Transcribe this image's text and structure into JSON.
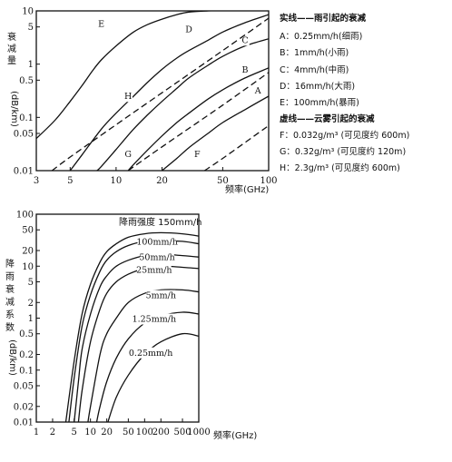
{
  "chart_data": [
    {
      "type": "line",
      "xscale": "log",
      "yscale": "log",
      "xlim": [
        3,
        100
      ],
      "ylim": [
        0.01,
        10
      ],
      "xlabel": "频率(GHz)",
      "ylabel": "衰减量(dB/km)",
      "xticks": [
        "3",
        "5",
        "10",
        "20",
        "50",
        "100"
      ],
      "xtick_values": [
        3,
        5,
        10,
        20,
        50,
        100
      ],
      "yticks": [
        "0.01",
        "0.05",
        "0.1",
        "0.5",
        "1",
        "5",
        "10"
      ],
      "ytick_values": [
        0.01,
        0.05,
        0.1,
        0.5,
        1,
        5,
        10
      ],
      "legend": {
        "solid_title": "实线——雨引起的衰减",
        "dashed_title": "虚线——云雾引起的衰减",
        "entries": [
          {
            "key": "A",
            "text": "A：0.25mm/h(细雨)"
          },
          {
            "key": "B",
            "text": "B：1mm/h(小雨)"
          },
          {
            "key": "C",
            "text": "C：4mm/h(中雨)"
          },
          {
            "key": "D",
            "text": "D：16mm/h(大雨)"
          },
          {
            "key": "E",
            "text": "E：100mm/h(暴雨)"
          },
          {
            "key": "F",
            "text": "F：0.032g/m³ (可见度约 600m)"
          },
          {
            "key": "G",
            "text": "G：0.32g/m³ (可见度约 120m)"
          },
          {
            "key": "H",
            "text": "H：2.3g/m³ (可见度约 600m)"
          }
        ]
      },
      "series": [
        {
          "name": "E",
          "style": "solid",
          "label_at": [
            8,
            5
          ],
          "x": [
            3,
            4,
            5,
            6,
            7,
            8,
            10,
            13,
            16,
            20,
            25,
            30,
            40,
            50,
            70,
            100
          ],
          "y": [
            0.04,
            0.09,
            0.2,
            0.4,
            0.75,
            1.2,
            2.2,
            4,
            5.5,
            7,
            8.5,
            9.5,
            10,
            10.5,
            11,
            12
          ]
        },
        {
          "name": "D",
          "style": "solid",
          "label_at": [
            30,
            4
          ],
          "x": [
            5,
            6,
            8,
            10,
            13,
            16,
            20,
            25,
            30,
            40,
            50,
            70,
            100
          ],
          "y": [
            0.01,
            0.02,
            0.06,
            0.12,
            0.25,
            0.45,
            0.8,
            1.3,
            1.8,
            2.8,
            4,
            6,
            8.5
          ]
        },
        {
          "name": "C",
          "style": "solid",
          "label_at": [
            70,
            2.5
          ],
          "x": [
            7.5,
            8,
            10,
            13,
            16,
            20,
            25,
            30,
            40,
            50,
            70,
            100
          ],
          "y": [
            0.01,
            0.012,
            0.025,
            0.06,
            0.11,
            0.2,
            0.35,
            0.55,
            0.95,
            1.4,
            2.2,
            3
          ]
        },
        {
          "name": "B",
          "style": "solid",
          "label_at": [
            70,
            0.7
          ],
          "x": [
            12,
            13,
            16,
            20,
            25,
            30,
            40,
            50,
            70,
            100
          ],
          "y": [
            0.01,
            0.013,
            0.024,
            0.045,
            0.08,
            0.12,
            0.22,
            0.33,
            0.55,
            0.85
          ]
        },
        {
          "name": "A",
          "style": "solid",
          "label_at": [
            85,
            0.28
          ],
          "x": [
            20,
            25,
            30,
            40,
            50,
            70,
            100
          ],
          "y": [
            0.01,
            0.017,
            0.027,
            0.05,
            0.08,
            0.14,
            0.25
          ]
        },
        {
          "name": "H",
          "style": "dashed",
          "label_at": [
            12,
            0.22
          ],
          "x": [
            3.8,
            5,
            10,
            20,
            50,
            100
          ],
          "y": [
            0.01,
            0.018,
            0.073,
            0.29,
            1.8,
            7.3
          ]
        },
        {
          "name": "G",
          "style": "dashed",
          "label_at": [
            12,
            0.018
          ],
          "x": [
            12,
            20,
            50,
            100
          ],
          "y": [
            0.01,
            0.028,
            0.17,
            0.7
          ]
        },
        {
          "name": "F",
          "style": "dashed",
          "label_at": [
            34,
            0.018
          ],
          "x": [
            38,
            50,
            100
          ],
          "y": [
            0.01,
            0.017,
            0.07
          ]
        }
      ]
    },
    {
      "type": "line",
      "xscale": "log",
      "yscale": "log",
      "xlim": [
        1,
        1000
      ],
      "ylim": [
        0.01,
        100
      ],
      "xlabel": "频率(GHz)",
      "ylabel": "降雨衰减系数(dB/km)",
      "xticks": [
        "1",
        "2",
        "5",
        "10",
        "20",
        "50",
        "100",
        "200",
        "500",
        "1000"
      ],
      "xtick_values": [
        1,
        2,
        5,
        10,
        20,
        50,
        100,
        200,
        500,
        1000
      ],
      "yticks": [
        "0.01",
        "0.02",
        "0.05",
        "0.1",
        "0.2",
        "0.5",
        "1",
        "2",
        "5",
        "10",
        "20",
        "50",
        "100"
      ],
      "ytick_values": [
        0.01,
        0.02,
        0.05,
        0.1,
        0.2,
        0.5,
        1,
        2,
        5,
        10,
        20,
        50,
        100
      ],
      "title": "降雨强度 150mm/h",
      "series": [
        {
          "name": "150mm/h",
          "x": [
            3.5,
            5,
            7,
            10,
            15,
            20,
            30,
            50,
            100,
            200,
            500,
            1000
          ],
          "y": [
            0.01,
            0.15,
            1.2,
            4.5,
            12,
            19,
            27,
            36,
            42,
            44,
            42,
            38
          ]
        },
        {
          "name": "100mm/h",
          "label_at": [
            170,
            26
          ],
          "x": [
            4,
            5,
            7,
            10,
            15,
            20,
            30,
            50,
            100,
            200,
            500,
            1000
          ],
          "y": [
            0.01,
            0.07,
            0.7,
            2.8,
            8,
            13,
            19,
            25,
            30,
            31,
            30,
            27
          ]
        },
        {
          "name": "50mm/h",
          "label_at": [
            170,
            13
          ],
          "x": [
            5,
            6,
            7,
            10,
            15,
            20,
            30,
            50,
            100,
            200,
            500,
            1000
          ],
          "y": [
            0.01,
            0.06,
            0.25,
            1.2,
            4,
            6.5,
            10,
            13,
            16,
            17,
            16,
            15
          ]
        },
        {
          "name": "25mm/h",
          "label_at": [
            150,
            7.5
          ],
          "x": [
            6,
            7,
            10,
            15,
            20,
            30,
            50,
            100,
            200,
            500,
            1000
          ],
          "y": [
            0.01,
            0.04,
            0.35,
            1.5,
            3,
            5,
            7,
            9,
            10,
            9.5,
            9
          ]
        },
        {
          "name": "5mm/h",
          "label_at": [
            200,
            2.4
          ],
          "x": [
            9,
            10,
            15,
            20,
            30,
            50,
            100,
            200,
            500,
            1000
          ],
          "y": [
            0.01,
            0.02,
            0.2,
            0.5,
            1,
            2,
            3,
            3.5,
            3.5,
            3.2
          ]
        },
        {
          "name": "1.25mm/h",
          "label_at": [
            150,
            0.85
          ],
          "x": [
            13,
            15,
            20,
            30,
            50,
            100,
            200,
            500,
            1000
          ],
          "y": [
            0.01,
            0.02,
            0.06,
            0.17,
            0.4,
            0.8,
            1.1,
            1.3,
            1.2
          ]
        },
        {
          "name": "0.25mm/h",
          "label_at": [
            130,
            0.19
          ],
          "x": [
            21,
            30,
            50,
            100,
            200,
            500,
            1000
          ],
          "y": [
            0.01,
            0.03,
            0.08,
            0.2,
            0.35,
            0.5,
            0.45
          ]
        }
      ]
    }
  ]
}
